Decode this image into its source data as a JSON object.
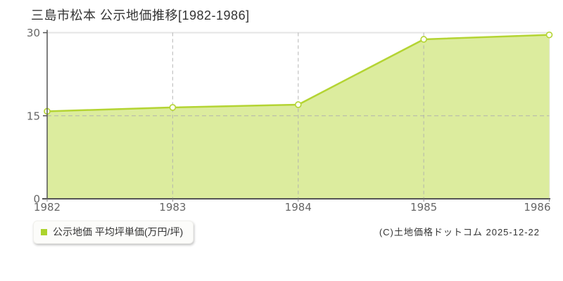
{
  "title": "三島市松本 公示地価推移[1982-1986]",
  "legend": {
    "label": "公示地価 平均坪単価(万円/坪)",
    "marker_color": "#abd32c"
  },
  "footer": {
    "copyright": "(C)土地価格ドットコム 2025-12-22"
  },
  "chart_data": {
    "type": "area",
    "title": "三島市松本 公示地価推移[1982-1986]",
    "series_name": "公示地価 平均坪単価(万円/坪)",
    "categories": [
      "1982",
      "1983",
      "1984",
      "1985",
      "1986"
    ],
    "values": [
      15.8,
      16.5,
      17.0,
      28.8,
      29.6
    ],
    "unit": "万円/坪",
    "xlabel": "",
    "ylabel": "",
    "ylim": [
      0,
      30
    ],
    "yticks": [
      0,
      15,
      30
    ],
    "grid": {
      "horizontal_dashed_at": [
        15
      ],
      "vertical_dashed_at": [
        "1983",
        "1984",
        "1985"
      ]
    },
    "legend_position": "bottom-left",
    "colors": {
      "line": "#b4d433",
      "fill": "#dcec9e",
      "marker_fill": "#fffef8",
      "grid": "#adadad",
      "boundary": "#e4e4e4",
      "axis": "#555555",
      "tick_label": "#666666"
    }
  }
}
